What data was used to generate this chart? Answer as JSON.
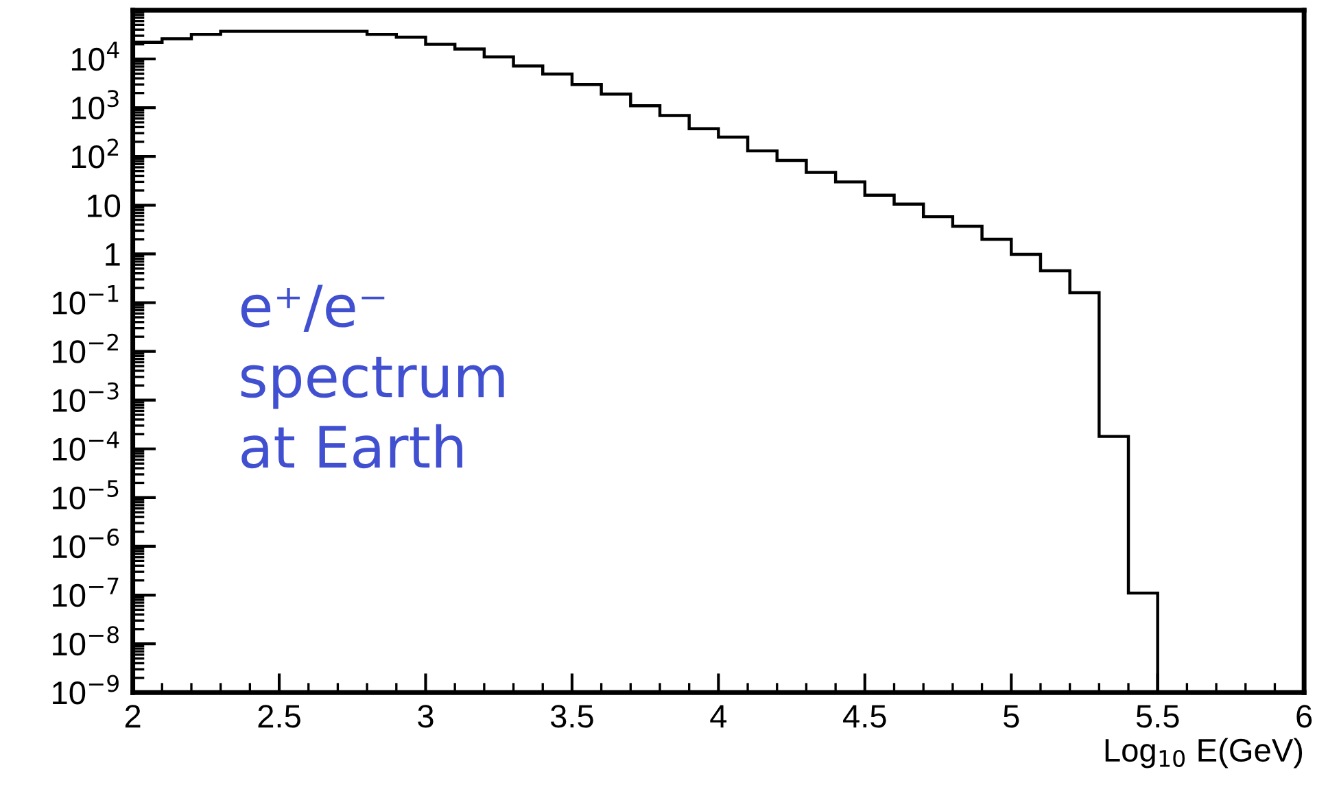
{
  "chart_data": {
    "type": "histogram",
    "xlabel": "Log$_{10}$ E(GeV)",
    "bins": [
      2.0,
      2.1,
      2.2,
      2.3,
      2.4,
      2.5,
      2.6,
      2.7,
      2.8,
      2.9,
      3.0,
      3.1,
      3.2,
      3.3,
      3.4,
      3.5,
      3.6,
      3.7,
      3.8,
      3.9,
      4.0,
      4.1,
      4.2,
      4.3,
      4.4,
      4.5,
      4.6,
      4.7,
      4.8,
      4.9,
      5.0,
      5.1,
      5.2,
      5.3,
      5.4,
      5.5
    ],
    "values": [
      22000,
      26000,
      32000,
      37000,
      37000,
      37000,
      37000,
      37000,
      32000,
      28000,
      20000,
      16000,
      11000,
      7200,
      4900,
      3000,
      1900,
      1100,
      690,
      370,
      250,
      130,
      83,
      47,
      30,
      16,
      10.5,
      5.8,
      3.7,
      2.0,
      0.98,
      0.45,
      0.16,
      0.00018,
      1.1e-07
    ],
    "color": "#000000",
    "log": "y",
    "grid": false,
    "xlim": [
      2,
      6
    ],
    "xticks": [
      2,
      2.5,
      3,
      3.5,
      4,
      4.5,
      5,
      5.5,
      6
    ],
    "ylim": [
      1e-09,
      100000.0
    ],
    "yticks": [
      {
        "value": 1e-09,
        "label": "10$^{−9}$"
      },
      {
        "value": 1e-08,
        "label": "10$^{−8}$"
      },
      {
        "value": 1e-07,
        "label": "10$^{−7}$"
      },
      {
        "value": 1e-06,
        "label": "10$^{−6}$"
      },
      {
        "value": 1e-05,
        "label": "10$^{−5}$"
      },
      {
        "value": 0.0001,
        "label": "10$^{−4}$"
      },
      {
        "value": 0.001,
        "label": "10$^{−3}$"
      },
      {
        "value": 0.01,
        "label": "10$^{−2}$"
      },
      {
        "value": 0.1,
        "label": "10$^{−1}$"
      },
      1,
      10,
      {
        "value": 100,
        "label": "10$^{2}$"
      },
      {
        "value": 1000,
        "label": "10$^{3}$"
      },
      {
        "value": 10000,
        "label": "10$^{4}$"
      }
    ],
    "annotations": [
      "e⁺/e⁻\nspectrum\nat Earth"
    ]
  }
}
